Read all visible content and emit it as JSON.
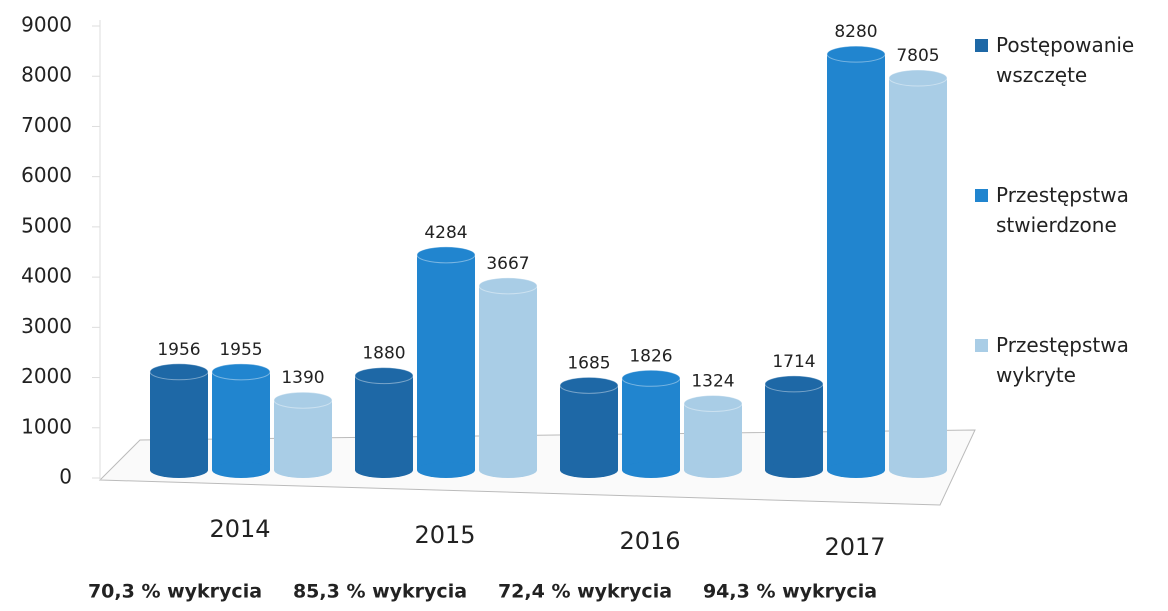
{
  "chart_data": {
    "type": "bar",
    "categories": [
      "2014",
      "2015",
      "2016",
      "2017"
    ],
    "series": [
      {
        "name": "Postępowanie wszczęte",
        "color": "#1e68a6",
        "values": [
          1956,
          1880,
          1685,
          1714
        ]
      },
      {
        "name": "Przestępstwa stwierdzone",
        "color": "#2185cf",
        "values": [
          1955,
          4284,
          1826,
          8280
        ]
      },
      {
        "name": "Przestępstwa wykryte",
        "color": "#a9cde6",
        "values": [
          1390,
          3667,
          1324,
          7805
        ]
      }
    ],
    "annotations": [
      "70,3 % wykrycia",
      "85,3 % wykrycia",
      "72,4 % wykrycia",
      "94,3 % wykrycia"
    ],
    "ylim": [
      0,
      9000
    ],
    "yticks": [
      0,
      1000,
      2000,
      3000,
      4000,
      5000,
      6000,
      7000,
      8000,
      9000
    ],
    "grid": false,
    "legend": "right"
  }
}
